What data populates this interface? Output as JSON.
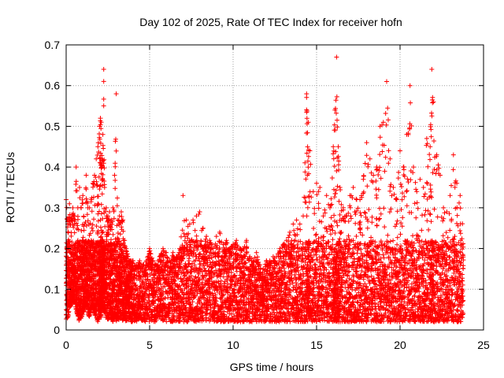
{
  "chart_data": {
    "type": "scatter",
    "title": "Day 102 of 2025, Rate Of TEC Index for receiver hofn",
    "xlabel": "GPS time / hours",
    "ylabel": "ROTI / TECUs",
    "xlim": [
      0,
      25
    ],
    "ylim": [
      0,
      0.7
    ],
    "x_ticks": [
      "0",
      "5",
      "10",
      "15",
      "20",
      "25"
    ],
    "y_ticks": [
      "0",
      "0.1",
      "0.2",
      "0.3",
      "0.4",
      "0.5",
      "0.6",
      "0.7"
    ],
    "grid": true,
    "marker": "plus",
    "color": "#ff0000",
    "series": [
      {
        "x": [
          0.0,
          0.1,
          0.2,
          0.3,
          0.4,
          0.5,
          0.6,
          0.7,
          0.8,
          0.9,
          1.0,
          1.1,
          1.2,
          1.3,
          1.4,
          1.5,
          1.6,
          1.7,
          1.8,
          1.9,
          2.0,
          2.05,
          2.1,
          2.15,
          2.2,
          2.25,
          2.3,
          2.4,
          2.5,
          2.6,
          2.7,
          2.8,
          2.9,
          3.0,
          3.1,
          3.2,
          3.3,
          3.4,
          3.5,
          3.6,
          3.7,
          3.8,
          3.9,
          4.0,
          4.2,
          4.4,
          4.6,
          4.8,
          5.0,
          5.2,
          5.4,
          5.6,
          5.8,
          6.0,
          6.2,
          6.4,
          6.6,
          6.8,
          7.0,
          7.2,
          7.4,
          7.6,
          7.8,
          8.0,
          8.2,
          8.4,
          8.6,
          8.8,
          9.0,
          9.2,
          9.4,
          9.6,
          9.8,
          10.0,
          10.2,
          10.4,
          10.6,
          10.8,
          11.0,
          11.2,
          11.4,
          11.6,
          11.8,
          12.0,
          12.2,
          12.4,
          12.6,
          12.8,
          13.0,
          13.2,
          13.4,
          13.6,
          13.8,
          14.0,
          14.2,
          14.4,
          14.5,
          14.6,
          14.8,
          15.0,
          15.2,
          15.4,
          15.6,
          15.8,
          16.0,
          16.1,
          16.2,
          16.3,
          16.4,
          16.6,
          16.8,
          17.0,
          17.2,
          17.4,
          17.6,
          17.8,
          18.0,
          18.2,
          18.4,
          18.6,
          18.8,
          19.0,
          19.2,
          19.4,
          19.6,
          19.8,
          20.0,
          20.2,
          20.4,
          20.6,
          20.8,
          21.0,
          21.2,
          21.4,
          21.6,
          21.8,
          21.9,
          22.0,
          22.2,
          22.4,
          22.6,
          22.8,
          23.0,
          23.2,
          23.4,
          23.6,
          23.8
        ],
        "upper": [
          0.32,
          0.26,
          0.31,
          0.27,
          0.3,
          0.28,
          0.4,
          0.3,
          0.35,
          0.3,
          0.33,
          0.26,
          0.38,
          0.3,
          0.3,
          0.32,
          0.36,
          0.38,
          0.42,
          0.45,
          0.5,
          0.52,
          0.51,
          0.4,
          0.48,
          0.64,
          0.35,
          0.3,
          0.28,
          0.29,
          0.27,
          0.3,
          0.38,
          0.58,
          0.27,
          0.28,
          0.29,
          0.27,
          0.22,
          0.2,
          0.18,
          0.17,
          0.17,
          0.17,
          0.16,
          0.17,
          0.16,
          0.17,
          0.2,
          0.17,
          0.16,
          0.18,
          0.2,
          0.19,
          0.17,
          0.19,
          0.18,
          0.2,
          0.33,
          0.27,
          0.26,
          0.27,
          0.28,
          0.29,
          0.25,
          0.23,
          0.22,
          0.2,
          0.23,
          0.24,
          0.21,
          0.22,
          0.2,
          0.21,
          0.22,
          0.2,
          0.2,
          0.22,
          0.18,
          0.17,
          0.19,
          0.16,
          0.15,
          0.17,
          0.17,
          0.18,
          0.18,
          0.2,
          0.21,
          0.22,
          0.24,
          0.26,
          0.27,
          0.26,
          0.28,
          0.58,
          0.51,
          0.44,
          0.34,
          0.36,
          0.35,
          0.28,
          0.33,
          0.3,
          0.45,
          0.54,
          0.67,
          0.45,
          0.35,
          0.3,
          0.28,
          0.33,
          0.35,
          0.32,
          0.32,
          0.37,
          0.46,
          0.42,
          0.38,
          0.4,
          0.5,
          0.51,
          0.61,
          0.42,
          0.35,
          0.32,
          0.44,
          0.4,
          0.48,
          0.6,
          0.4,
          0.34,
          0.37,
          0.35,
          0.47,
          0.45,
          0.64,
          0.56,
          0.43,
          0.38,
          0.3,
          0.29,
          0.33,
          0.43,
          0.36,
          0.33,
          0.3
        ],
        "lower": [
          0.02,
          0.03,
          0.05,
          0.06,
          0.07,
          0.07,
          0.05,
          0.03,
          0.02,
          0.03,
          0.04,
          0.05,
          0.06,
          0.04,
          0.03,
          0.05,
          0.05,
          0.04,
          0.03,
          0.02,
          0.03,
          0.04,
          0.03,
          0.06,
          0.05,
          0.06,
          0.04,
          0.03,
          0.02,
          0.03,
          0.02,
          0.02,
          0.03,
          0.02,
          0.03,
          0.02,
          0.03,
          0.02,
          0.03,
          0.02,
          0.02,
          0.03,
          0.02,
          0.02,
          0.02,
          0.03,
          0.02,
          0.02,
          0.02,
          0.02,
          0.02,
          0.03,
          0.02,
          0.02,
          0.02,
          0.02,
          0.02,
          0.02,
          0.02,
          0.02,
          0.02,
          0.02,
          0.02,
          0.02,
          0.02,
          0.02,
          0.02,
          0.02,
          0.02,
          0.02,
          0.02,
          0.02,
          0.02,
          0.02,
          0.02,
          0.02,
          0.02,
          0.02,
          0.02,
          0.02,
          0.02,
          0.02,
          0.02,
          0.02,
          0.02,
          0.02,
          0.02,
          0.02,
          0.02,
          0.02,
          0.02,
          0.02,
          0.02,
          0.02,
          0.02,
          0.02,
          0.02,
          0.02,
          0.02,
          0.02,
          0.02,
          0.02,
          0.02,
          0.02,
          0.02,
          0.02,
          0.02,
          0.02,
          0.02,
          0.02,
          0.02,
          0.02,
          0.02,
          0.02,
          0.02,
          0.02,
          0.02,
          0.02,
          0.02,
          0.02,
          0.02,
          0.02,
          0.02,
          0.02,
          0.02,
          0.02,
          0.02,
          0.02,
          0.02,
          0.02,
          0.02,
          0.02,
          0.02,
          0.02,
          0.02,
          0.02,
          0.02,
          0.02,
          0.02,
          0.02,
          0.02,
          0.02,
          0.02,
          0.02,
          0.02,
          0.02,
          0.02
        ]
      }
    ]
  }
}
